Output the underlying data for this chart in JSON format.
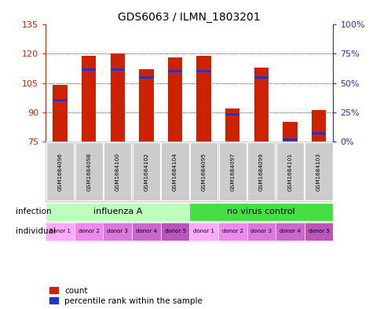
{
  "title": "GDS6063 / ILMN_1803201",
  "samples": [
    "GSM1684096",
    "GSM1684098",
    "GSM1684100",
    "GSM1684102",
    "GSM1684104",
    "GSM1684095",
    "GSM1684097",
    "GSM1684099",
    "GSM1684101",
    "GSM1684103"
  ],
  "bar_heights": [
    104,
    119,
    120,
    112,
    118,
    119,
    92,
    113,
    85,
    91
  ],
  "percentile_values": [
    96,
    112,
    112,
    108,
    111,
    111,
    89,
    108,
    76,
    79
  ],
  "ymin": 75,
  "ymax": 135,
  "yticks": [
    75,
    90,
    105,
    120,
    135
  ],
  "bar_color": "#cc2200",
  "blue_color": "#2233cc",
  "infection_groups": [
    {
      "label": "influenza A",
      "start": 0,
      "end": 5,
      "color": "#bbffbb"
    },
    {
      "label": "no virus control",
      "start": 5,
      "end": 10,
      "color": "#44dd44"
    }
  ],
  "individual_labels": [
    "donor 1",
    "donor 2",
    "donor 3",
    "donor 4",
    "donor 5",
    "donor 1",
    "donor 2",
    "donor 3",
    "donor 4",
    "donor 5"
  ],
  "individual_colors": [
    "#ffaaff",
    "#ee88ee",
    "#dd77dd",
    "#cc66cc",
    "#bb55bb",
    "#ffaaff",
    "#ee88ee",
    "#dd77dd",
    "#cc66cc",
    "#bb55bb"
  ],
  "label_infection": "infection",
  "label_individual": "individual",
  "legend_count": "count",
  "legend_percentile": "percentile rank within the sample",
  "bg_color": "#ffffff",
  "plot_bg": "#ffffff",
  "grid_color": "#000000",
  "axis_color_left": "#cc2200",
  "axis_color_right": "#2233cc",
  "bar_width": 0.5,
  "sample_bg": "#cccccc"
}
